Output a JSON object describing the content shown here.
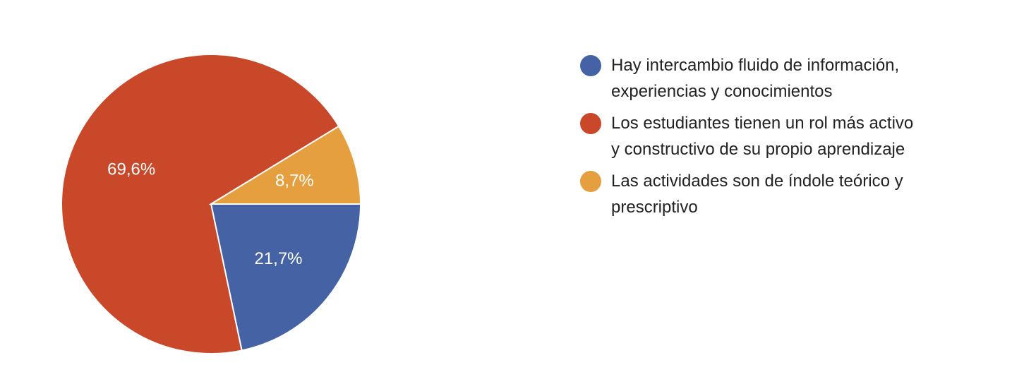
{
  "chart_data": {
    "type": "pie",
    "slices": [
      {
        "legend_line1": "Hay intercambio fluido de información,",
        "legend_line2": "experiencias y conocimientos",
        "value": 21.7,
        "label": "21,7%",
        "color": "#4563a4"
      },
      {
        "legend_line1": "Los estudiantes tienen un rol más activo",
        "legend_line2": "y constructivo de su propio aprendizaje",
        "value": 69.6,
        "label": "69,6%",
        "color": "#c84829"
      },
      {
        "legend_line1": "Las actividades son de índole teórico y",
        "legend_line2": "prescriptivo",
        "value": 8.7,
        "label": "8,7%",
        "color": "#e59f3e"
      }
    ],
    "legend_position": "right"
  }
}
